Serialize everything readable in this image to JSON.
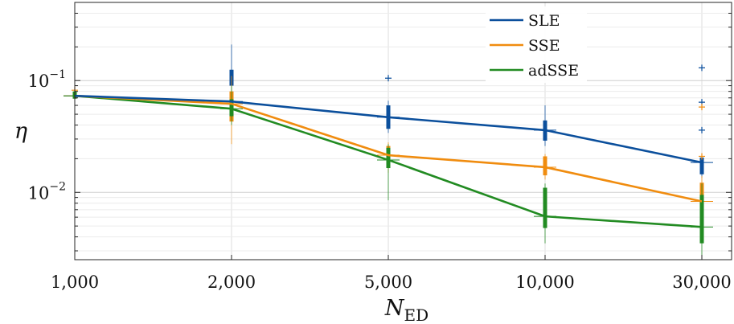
{
  "chart_data": {
    "type": "line",
    "title": "",
    "xlabel": "N",
    "xlabel_subscript": "ED",
    "ylabel": "η",
    "x_categories": [
      "1,000",
      "2,000",
      "5,000",
      "10,000",
      "30,000"
    ],
    "y_scale": "log",
    "ylim": [
      0.0025,
      0.5
    ],
    "y_ticks": [
      {
        "value": 0.1,
        "base": "10",
        "exp": "−1"
      },
      {
        "value": 0.01,
        "base": "10",
        "exp": "−2"
      }
    ],
    "grid": true,
    "legend_position": "top-right",
    "series": [
      {
        "name": "SLE",
        "color": "#0b4f9c",
        "values": [
          0.073,
          0.065,
          0.047,
          0.036,
          0.0185
        ],
        "box": [
          [
            0.069,
            0.079
          ],
          [
            0.09,
            0.125
          ],
          [
            0.037,
            0.06
          ],
          [
            0.029,
            0.044
          ],
          [
            0.0145,
            0.0205
          ]
        ],
        "whisker": [
          [
            0.068,
            0.082
          ],
          [
            0.07,
            0.21
          ],
          [
            0.034,
            0.066
          ],
          [
            0.026,
            0.06
          ],
          [
            0.0135,
            0.021
          ]
        ],
        "outliers": [
          [],
          [],
          [
            0.105
          ],
          [],
          [
            0.13,
            0.064,
            0.036
          ]
        ]
      },
      {
        "name": "SSE",
        "color": "#f08c0f",
        "values": [
          0.073,
          0.062,
          0.0215,
          0.0168,
          0.0083
        ],
        "box": [
          [
            0.069,
            0.079
          ],
          [
            0.043,
            0.08
          ],
          [
            0.0185,
            0.026
          ],
          [
            0.0142,
            0.021
          ],
          [
            0.0055,
            0.0122
          ]
        ],
        "whisker": [
          [
            0.067,
            0.095
          ],
          [
            0.027,
            0.11
          ],
          [
            0.015,
            0.028
          ],
          [
            0.013,
            0.022
          ],
          [
            0.0048,
            0.014
          ]
        ],
        "outliers": [
          [
            0.082
          ],
          [],
          [],
          [],
          [
            0.058,
            0.021
          ]
        ]
      },
      {
        "name": "adSSE",
        "color": "#228b22",
        "values": [
          0.073,
          0.056,
          0.0195,
          0.0061,
          0.0049
        ],
        "box": [
          [
            0.069,
            0.08
          ],
          [
            0.048,
            0.068
          ],
          [
            0.0165,
            0.025
          ],
          [
            0.0048,
            0.011
          ],
          [
            0.0035,
            0.0095
          ]
        ],
        "whisker": [
          [
            0.062,
            0.15
          ],
          [
            0.04,
            0.09
          ],
          [
            0.0085,
            0.027
          ],
          [
            0.0035,
            0.012
          ],
          [
            0.0025,
            0.012
          ]
        ],
        "outliers": [
          [],
          [],
          [],
          [],
          []
        ]
      }
    ]
  }
}
